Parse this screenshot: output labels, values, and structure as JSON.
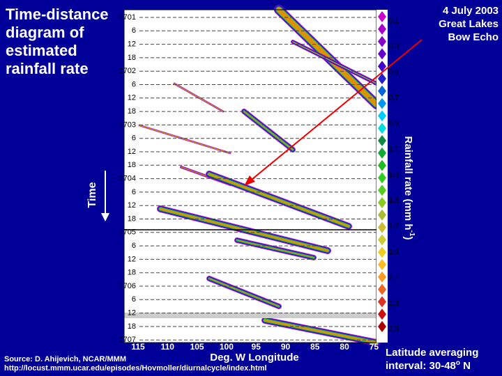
{
  "title_lines": [
    "Time-distance",
    "diagram of",
    "estimated",
    "rainfall rate"
  ],
  "event_lines": [
    "4 July 2003",
    "Great Lakes",
    "Bow Echo"
  ],
  "time_label": "Time",
  "time_ticks": [
    "0701",
    "6",
    "12",
    "18",
    "0702",
    "6",
    "12",
    "18",
    "0703",
    "6",
    "12",
    "18",
    "0704",
    "6",
    "12",
    "18",
    "0705",
    "6",
    "12",
    "18",
    "0706",
    "6",
    "12",
    "18",
    "0707"
  ],
  "longitude_ticks": [
    "115",
    "110",
    "105",
    "100",
    "95",
    "90",
    "85",
    "80",
    "75"
  ],
  "longitude_label": "Deg. W Longitude",
  "colorbar_ticks": [
    "0.1",
    "0.3",
    "0.5",
    "0.7",
    "0.9",
    "1.1",
    "1.3",
    "1.5",
    "1.7",
    "1.9",
    "2.1",
    "2.3",
    "2.5"
  ],
  "colorbar_label": {
    "main": "Rainfall rate (mm h",
    "superscript": "-1",
    "end": ")"
  },
  "latitude_note": {
    "line1": "Latitude averaging",
    "line2_main": "interval: 30-48",
    "degree": "o",
    "line2_end": " N"
  },
  "source": {
    "line1": "Source: D. Ahijevich, NCAR/MMM",
    "line2": "http://locust.mmm.ucar.edu/episodes/Hovmoller/diurnalcycle/index.html"
  }
}
